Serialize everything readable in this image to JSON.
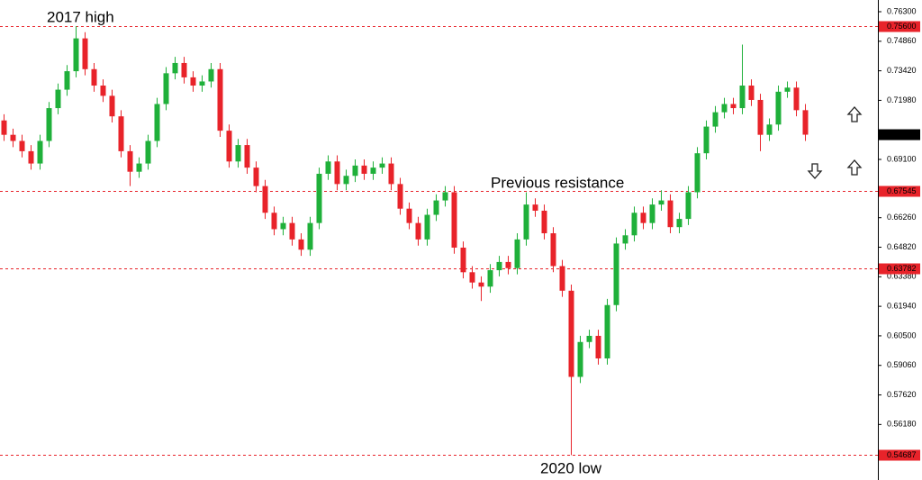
{
  "chart_data": {
    "type": "candlestick",
    "up_color": "#1fb03a",
    "down_color": "#e8232a",
    "level_color": "#e8232a",
    "ylim": [
      0.53473,
      0.76871
    ],
    "yticks": [
      {
        "value": 0.763,
        "label": "0.76300"
      },
      {
        "value": 0.7486,
        "label": "0.74860"
      },
      {
        "value": 0.7342,
        "label": "0.73420"
      },
      {
        "value": 0.7198,
        "label": "0.71980"
      },
      {
        "value": 0.691,
        "label": "0.69100"
      },
      {
        "value": 0.6626,
        "label": "0.66260"
      },
      {
        "value": 0.6482,
        "label": "0.64820"
      },
      {
        "value": 0.6338,
        "label": "0.63380"
      },
      {
        "value": 0.6194,
        "label": "0.61940"
      },
      {
        "value": 0.605,
        "label": "0.60500"
      },
      {
        "value": 0.5906,
        "label": "0.59060"
      },
      {
        "value": 0.5762,
        "label": "0.57620"
      },
      {
        "value": 0.5618,
        "label": "0.56180"
      }
    ],
    "levels": [
      {
        "value": 0.756,
        "label": "0.75600"
      },
      {
        "value": 0.67545,
        "label": "0.67545"
      },
      {
        "value": 0.63782,
        "label": "0.63782"
      },
      {
        "value": 0.54687,
        "label": "0.54687"
      }
    ],
    "annotations": [
      "2017 high",
      "Previous resistance",
      "2020 low"
    ],
    "candles": [
      [
        0.71,
        0.713,
        0.7,
        0.703
      ],
      [
        0.703,
        0.706,
        0.697,
        0.7
      ],
      [
        0.7,
        0.703,
        0.692,
        0.695
      ],
      [
        0.695,
        0.698,
        0.686,
        0.689
      ],
      [
        0.689,
        0.703,
        0.686,
        0.7
      ],
      [
        0.7,
        0.719,
        0.697,
        0.716
      ],
      [
        0.716,
        0.728,
        0.713,
        0.725
      ],
      [
        0.725,
        0.737,
        0.722,
        0.734
      ],
      [
        0.734,
        0.756,
        0.731,
        0.75
      ],
      [
        0.75,
        0.753,
        0.732,
        0.735
      ],
      [
        0.735,
        0.738,
        0.724,
        0.727
      ],
      [
        0.727,
        0.73,
        0.719,
        0.722
      ],
      [
        0.722,
        0.725,
        0.709,
        0.712
      ],
      [
        0.712,
        0.715,
        0.692,
        0.695
      ],
      [
        0.695,
        0.698,
        0.678,
        0.685
      ],
      [
        0.685,
        0.692,
        0.682,
        0.689
      ],
      [
        0.689,
        0.703,
        0.686,
        0.7
      ],
      [
        0.7,
        0.721,
        0.697,
        0.718
      ],
      [
        0.718,
        0.736,
        0.715,
        0.733
      ],
      [
        0.733,
        0.741,
        0.73,
        0.738
      ],
      [
        0.738,
        0.741,
        0.728,
        0.731
      ],
      [
        0.731,
        0.734,
        0.724,
        0.727
      ],
      [
        0.727,
        0.732,
        0.724,
        0.729
      ],
      [
        0.729,
        0.738,
        0.726,
        0.735
      ],
      [
        0.735,
        0.738,
        0.702,
        0.705
      ],
      [
        0.705,
        0.708,
        0.687,
        0.69
      ],
      [
        0.69,
        0.701,
        0.687,
        0.698
      ],
      [
        0.698,
        0.701,
        0.684,
        0.687
      ],
      [
        0.687,
        0.69,
        0.675,
        0.678
      ],
      [
        0.678,
        0.681,
        0.662,
        0.665
      ],
      [
        0.665,
        0.668,
        0.654,
        0.657
      ],
      [
        0.657,
        0.663,
        0.654,
        0.66
      ],
      [
        0.66,
        0.663,
        0.649,
        0.652
      ],
      [
        0.652,
        0.655,
        0.644,
        0.647
      ],
      [
        0.647,
        0.663,
        0.644,
        0.66
      ],
      [
        0.66,
        0.687,
        0.657,
        0.684
      ],
      [
        0.684,
        0.693,
        0.681,
        0.69
      ],
      [
        0.69,
        0.693,
        0.676,
        0.679
      ],
      [
        0.679,
        0.686,
        0.676,
        0.683
      ],
      [
        0.683,
        0.691,
        0.68,
        0.688
      ],
      [
        0.688,
        0.691,
        0.681,
        0.684
      ],
      [
        0.684,
        0.69,
        0.681,
        0.687
      ],
      [
        0.687,
        0.692,
        0.684,
        0.689
      ],
      [
        0.689,
        0.692,
        0.676,
        0.679
      ],
      [
        0.679,
        0.682,
        0.664,
        0.667
      ],
      [
        0.667,
        0.67,
        0.657,
        0.66
      ],
      [
        0.66,
        0.663,
        0.649,
        0.652
      ],
      [
        0.652,
        0.667,
        0.649,
        0.664
      ],
      [
        0.664,
        0.674,
        0.661,
        0.671
      ],
      [
        0.671,
        0.678,
        0.668,
        0.675
      ],
      [
        0.675,
        0.678,
        0.645,
        0.648
      ],
      [
        0.648,
        0.651,
        0.633,
        0.636
      ],
      [
        0.636,
        0.639,
        0.628,
        0.631
      ],
      [
        0.631,
        0.634,
        0.622,
        0.629
      ],
      [
        0.629,
        0.64,
        0.626,
        0.637
      ],
      [
        0.637,
        0.644,
        0.634,
        0.641
      ],
      [
        0.641,
        0.644,
        0.635,
        0.638
      ],
      [
        0.638,
        0.655,
        0.635,
        0.652
      ],
      [
        0.652,
        0.675,
        0.649,
        0.669
      ],
      [
        0.669,
        0.672,
        0.663,
        0.666
      ],
      [
        0.666,
        0.669,
        0.652,
        0.655
      ],
      [
        0.655,
        0.658,
        0.636,
        0.639
      ],
      [
        0.639,
        0.642,
        0.624,
        0.627
      ],
      [
        0.627,
        0.63,
        0.54687,
        0.585
      ],
      [
        0.585,
        0.605,
        0.582,
        0.602
      ],
      [
        0.602,
        0.608,
        0.599,
        0.605
      ],
      [
        0.605,
        0.608,
        0.591,
        0.594
      ],
      [
        0.594,
        0.623,
        0.591,
        0.62
      ],
      [
        0.62,
        0.653,
        0.617,
        0.65
      ],
      [
        0.65,
        0.657,
        0.647,
        0.654
      ],
      [
        0.654,
        0.668,
        0.651,
        0.665
      ],
      [
        0.665,
        0.668,
        0.657,
        0.66
      ],
      [
        0.66,
        0.672,
        0.657,
        0.669
      ],
      [
        0.669,
        0.676,
        0.666,
        0.671
      ],
      [
        0.671,
        0.674,
        0.655,
        0.658
      ],
      [
        0.658,
        0.665,
        0.655,
        0.662
      ],
      [
        0.662,
        0.678,
        0.659,
        0.675
      ],
      [
        0.675,
        0.697,
        0.672,
        0.694
      ],
      [
        0.694,
        0.71,
        0.691,
        0.707
      ],
      [
        0.707,
        0.717,
        0.704,
        0.714
      ],
      [
        0.714,
        0.721,
        0.711,
        0.718
      ],
      [
        0.718,
        0.721,
        0.713,
        0.716
      ],
      [
        0.716,
        0.747,
        0.713,
        0.727
      ],
      [
        0.727,
        0.73,
        0.717,
        0.72
      ],
      [
        0.72,
        0.723,
        0.695,
        0.703
      ],
      [
        0.703,
        0.711,
        0.7,
        0.708
      ],
      [
        0.708,
        0.727,
        0.705,
        0.724
      ],
      [
        0.724,
        0.729,
        0.721,
        0.726
      ],
      [
        0.726,
        0.729,
        0.712,
        0.715
      ],
      [
        0.715,
        0.718,
        0.7,
        0.70306
      ]
    ]
  }
}
